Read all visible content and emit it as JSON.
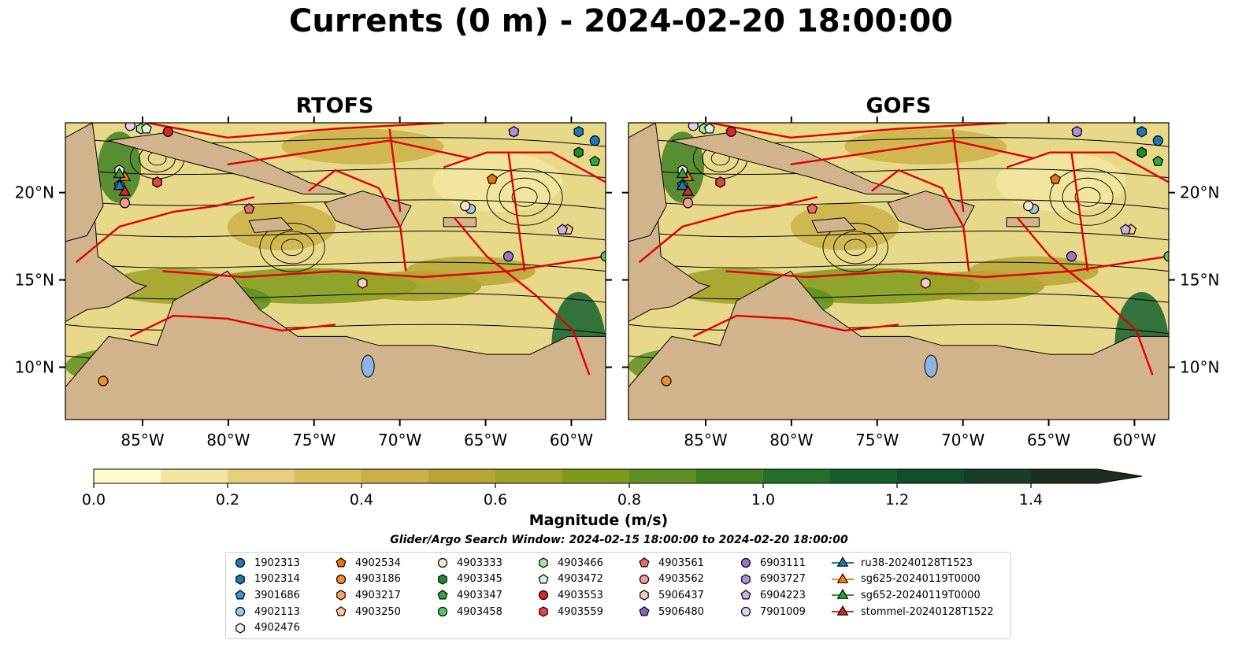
{
  "title": "Currents (0 m) - 2024-02-20 18:00:00",
  "panels": [
    {
      "title": "RTOFS"
    },
    {
      "title": "GOFS"
    }
  ],
  "chart_data": {
    "type": "heatmap",
    "title": "Currents (0 m) - 2024-02-20 18:00:00",
    "xlim": [
      -89.5,
      -58.0
    ],
    "ylim": [
      7.0,
      24.0
    ],
    "xticks": [
      "85°W",
      "80°W",
      "75°W",
      "70°W",
      "65°W",
      "60°W"
    ],
    "xtick_values": [
      -85,
      -80,
      -75,
      -70,
      -65,
      -60
    ],
    "yticks": [
      "10°N",
      "15°N",
      "20°N"
    ],
    "ytick_values": [
      10,
      15,
      20
    ],
    "colorbar": {
      "label": "Magnitude (m/s)",
      "range": [
        0.0,
        1.5
      ],
      "extend": "max",
      "ticks": [
        "0.0",
        "0.2",
        "0.4",
        "0.6",
        "0.8",
        "1.0",
        "1.2",
        "1.4"
      ],
      "tick_values": [
        0.0,
        0.2,
        0.4,
        0.6,
        0.8,
        1.0,
        1.2,
        1.4
      ],
      "colors": [
        "#fefbca",
        "#f2e6a0",
        "#e6d07a",
        "#d9bf5a",
        "#cbb047",
        "#b7a635",
        "#9da125",
        "#7e9a1c",
        "#5f8f1f",
        "#3f7f22",
        "#226e2b",
        "#145f2d",
        "#124d2a",
        "#183d26",
        "#1a2f1f"
      ]
    },
    "search_window": "Glider/Argo Search Window: 2024-02-15 18:00:00 to 2024-02-20 18:00:00",
    "legend_placement": "bottom"
  },
  "legend": [
    {
      "label": "1902313",
      "marker": "circle",
      "color": "#1f77b4"
    },
    {
      "label": "1902314",
      "marker": "hexagon",
      "color": "#1f77b4"
    },
    {
      "label": "3901686",
      "marker": "pentagon",
      "color": "#3c92d0"
    },
    {
      "label": "4902113",
      "marker": "circle",
      "color": "#9ac8ea"
    },
    {
      "label": "4902476",
      "marker": "hexagon",
      "color": "#e8f3fb"
    },
    {
      "label": "4902534",
      "marker": "pentagon",
      "color": "#e6740f"
    },
    {
      "label": "4903186",
      "marker": "circle",
      "color": "#f28c2c"
    },
    {
      "label": "4903217",
      "marker": "hexagon",
      "color": "#f6a75a"
    },
    {
      "label": "4903250",
      "marker": "pentagon",
      "color": "#f9c896"
    },
    {
      "label": "4903333",
      "marker": "circle",
      "color": "#fde3c8"
    },
    {
      "label": "4903345",
      "marker": "hexagon",
      "color": "#1e8a2e"
    },
    {
      "label": "4903347",
      "marker": "pentagon",
      "color": "#31a43c"
    },
    {
      "label": "4903458",
      "marker": "circle",
      "color": "#5cc462"
    },
    {
      "label": "4903466",
      "marker": "hexagon",
      "color": "#a6e3a2"
    },
    {
      "label": "4903472",
      "marker": "pentagon",
      "color": "#dcf5d8"
    },
    {
      "label": "4903553",
      "marker": "circle",
      "color": "#d62728"
    },
    {
      "label": "4903559",
      "marker": "hexagon",
      "color": "#e0483e"
    },
    {
      "label": "4903561",
      "marker": "pentagon",
      "color": "#eb6a6a"
    },
    {
      "label": "4903562",
      "marker": "circle",
      "color": "#f49a9a"
    },
    {
      "label": "5906437",
      "marker": "hexagon",
      "color": "#fbcaca"
    },
    {
      "label": "5906480",
      "marker": "pentagon",
      "color": "#8a63c0"
    },
    {
      "label": "6903111",
      "marker": "circle",
      "color": "#9c72cc"
    },
    {
      "label": "6903727",
      "marker": "hexagon",
      "color": "#b28fdc"
    },
    {
      "label": "6904223",
      "marker": "pentagon",
      "color": "#c9b0ea"
    },
    {
      "label": "7901009",
      "marker": "circle",
      "color": "#e2cff6"
    },
    {
      "label": "ru38-20240128T1523",
      "marker": "triangle-line",
      "color": "#1f77b4"
    },
    {
      "label": "sg625-20240119T0000",
      "marker": "triangle-line",
      "color": "#ff7f0e"
    },
    {
      "label": "sg652-20240119T0000",
      "marker": "triangle-line",
      "color": "#2ca02c"
    },
    {
      "label": "stommel-20240128T1522",
      "marker": "triangle-line",
      "color": "#d62728"
    }
  ]
}
